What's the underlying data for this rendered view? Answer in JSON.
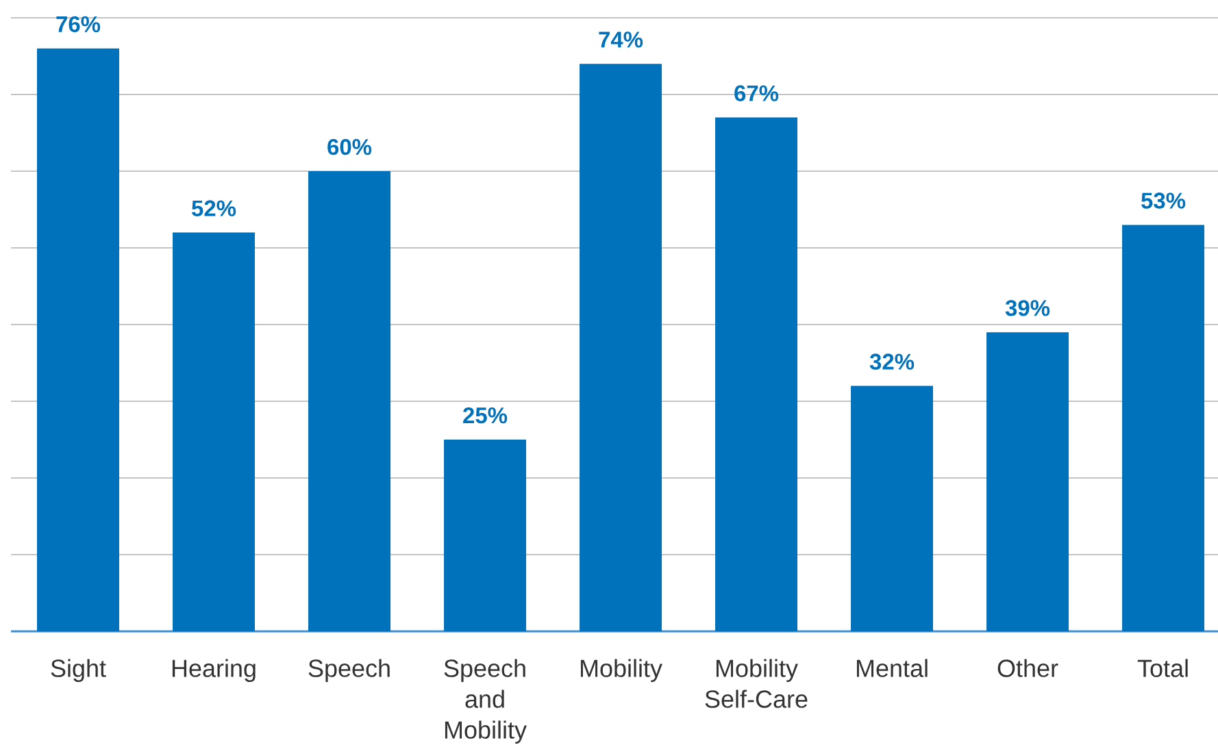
{
  "chart_data": {
    "type": "bar",
    "categories": [
      "Sight",
      "Hearing",
      "Speech",
      "Speech and Mobility",
      "Mobility",
      "Mobility Self-Care",
      "Mental",
      "Other",
      "Total"
    ],
    "values": [
      76,
      52,
      60,
      25,
      74,
      67,
      32,
      39,
      53
    ],
    "value_labels": [
      "76%",
      "52%",
      "60%",
      "25%",
      "74%",
      "67%",
      "32%",
      "39%",
      "53%"
    ],
    "color": "#0072bc",
    "ylim": [
      0,
      80
    ],
    "yticks": [
      {
        "value": 0,
        "label": null
      },
      {
        "value": 10,
        "label": null
      },
      {
        "value": 20,
        "label": null
      },
      {
        "value": 30,
        "label": null
      },
      {
        "value": 40,
        "label": null
      },
      {
        "value": 50,
        "label": null
      },
      {
        "value": 60,
        "label": null
      },
      {
        "value": 70,
        "label": null
      },
      {
        "value": 80,
        "label": null
      }
    ],
    "grid": "y",
    "tick_labels": "x"
  }
}
